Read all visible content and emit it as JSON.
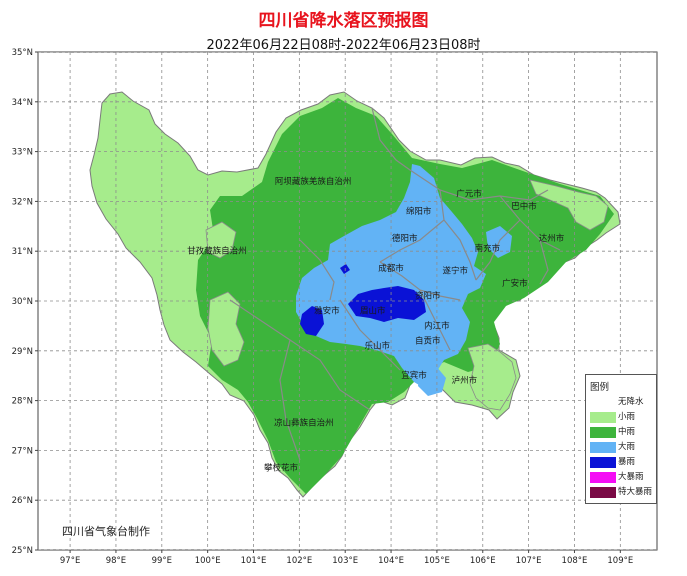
{
  "title": "四川省降水落区预报图",
  "subtitle": "2022年06月22日08时-2022年06月23日08时",
  "footer": "四川省气象台制作",
  "axes": {
    "lon_ticks": [
      "97°E",
      "98°E",
      "99°E",
      "100°E",
      "101°E",
      "102°E",
      "103°E",
      "104°E",
      "105°E",
      "106°E",
      "107°E",
      "108°E",
      "109°E"
    ],
    "lat_ticks": [
      "35°N",
      "34°N",
      "33°N",
      "32°N",
      "31°N",
      "30°N",
      "29°N",
      "28°N",
      "27°N",
      "26°N",
      "25°N"
    ],
    "lon_range": [
      96.3,
      109.8
    ],
    "lat_range": [
      25.0,
      35.0
    ]
  },
  "legend": {
    "title": "图例",
    "items": [
      {
        "label": "无降水",
        "color": "#ffffff"
      },
      {
        "label": "小雨",
        "color": "#a6ec8c"
      },
      {
        "label": "中雨",
        "color": "#3db43c"
      },
      {
        "label": "大雨",
        "color": "#62b3f5"
      },
      {
        "label": "暴雨",
        "color": "#0a12d6"
      },
      {
        "label": "大暴雨",
        "color": "#f50df5"
      },
      {
        "label": "特大暴雨",
        "color": "#7a0a45"
      }
    ]
  },
  "regions": [
    {
      "name": "阿坝藏族羌族自治州",
      "lon": 102.3,
      "lat": 32.35
    },
    {
      "name": "甘孜藏族自治州",
      "lon": 100.2,
      "lat": 30.95
    },
    {
      "name": "凉山彝族自治州",
      "lon": 102.1,
      "lat": 27.5
    },
    {
      "name": "广元市",
      "lon": 105.7,
      "lat": 32.1
    },
    {
      "name": "巴中市",
      "lon": 106.9,
      "lat": 31.85
    },
    {
      "name": "绵阳市",
      "lon": 104.6,
      "lat": 31.75
    },
    {
      "name": "德阳市",
      "lon": 104.3,
      "lat": 31.2
    },
    {
      "name": "南充市",
      "lon": 106.1,
      "lat": 31.0
    },
    {
      "name": "达州市",
      "lon": 107.5,
      "lat": 31.2
    },
    {
      "name": "成都市",
      "lon": 104.0,
      "lat": 30.6
    },
    {
      "name": "遂宁市",
      "lon": 105.4,
      "lat": 30.55
    },
    {
      "name": "广安市",
      "lon": 106.7,
      "lat": 30.3
    },
    {
      "name": "资阳市",
      "lon": 104.8,
      "lat": 30.05
    },
    {
      "name": "雅安市",
      "lon": 102.6,
      "lat": 29.75
    },
    {
      "name": "眉山市",
      "lon": 103.6,
      "lat": 29.75
    },
    {
      "name": "内江市",
      "lon": 105.0,
      "lat": 29.45
    },
    {
      "name": "乐山市",
      "lon": 103.7,
      "lat": 29.05
    },
    {
      "name": "自贡市",
      "lon": 104.8,
      "lat": 29.15
    },
    {
      "name": "宜宾市",
      "lon": 104.5,
      "lat": 28.45
    },
    {
      "name": "泸州市",
      "lon": 105.6,
      "lat": 28.35
    },
    {
      "name": "攀枝花市",
      "lon": 101.6,
      "lat": 26.6
    }
  ]
}
